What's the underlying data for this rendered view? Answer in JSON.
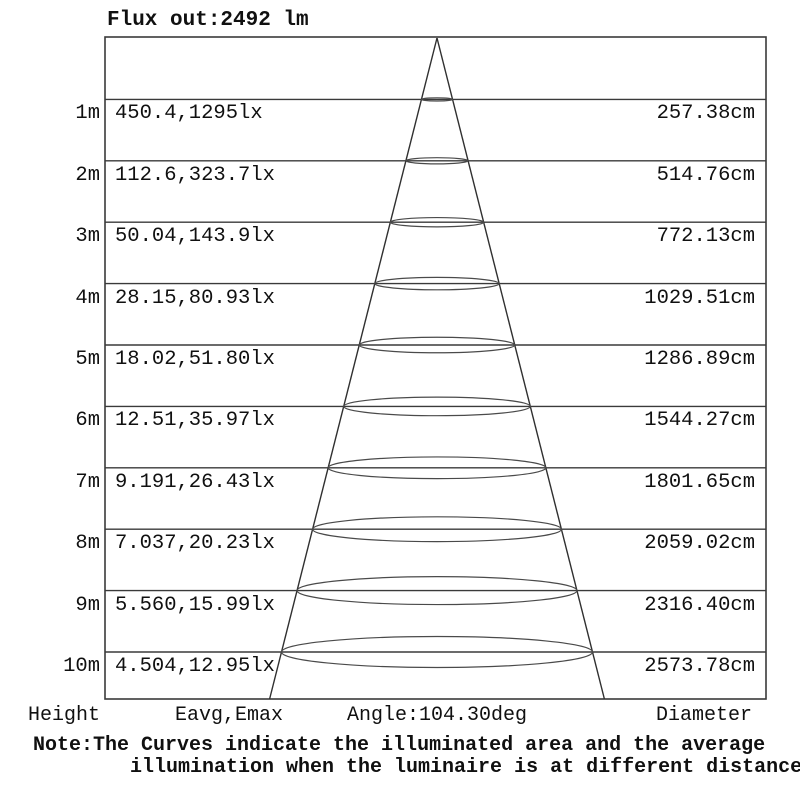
{
  "title": "Flux out:2492 lm",
  "chart_data": {
    "type": "table",
    "title": "Flux out:2492 lm",
    "flux_lm": 2492,
    "beam_angle_deg": 104.3,
    "columns": [
      "Height",
      "Eavg,Emax",
      "Diameter"
    ],
    "rows": [
      {
        "height": "1m",
        "eavg_emax": "450.4,1295lx",
        "diameter": "257.38cm",
        "height_m": 1,
        "eavg_lx": 450.4,
        "emax_lx": 1295,
        "diameter_cm": 257.38
      },
      {
        "height": "2m",
        "eavg_emax": "112.6,323.7lx",
        "diameter": "514.76cm",
        "height_m": 2,
        "eavg_lx": 112.6,
        "emax_lx": 323.7,
        "diameter_cm": 514.76
      },
      {
        "height": "3m",
        "eavg_emax": "50.04,143.9lx",
        "diameter": "772.13cm",
        "height_m": 3,
        "eavg_lx": 50.04,
        "emax_lx": 143.9,
        "diameter_cm": 772.13
      },
      {
        "height": "4m",
        "eavg_emax": "28.15,80.93lx",
        "diameter": "1029.51cm",
        "height_m": 4,
        "eavg_lx": 28.15,
        "emax_lx": 80.93,
        "diameter_cm": 1029.51
      },
      {
        "height": "5m",
        "eavg_emax": "18.02,51.80lx",
        "diameter": "1286.89cm",
        "height_m": 5,
        "eavg_lx": 18.02,
        "emax_lx": 51.8,
        "diameter_cm": 1286.89
      },
      {
        "height": "6m",
        "eavg_emax": "12.51,35.97lx",
        "diameter": "1544.27cm",
        "height_m": 6,
        "eavg_lx": 12.51,
        "emax_lx": 35.97,
        "diameter_cm": 1544.27
      },
      {
        "height": "7m",
        "eavg_emax": "9.191,26.43lx",
        "diameter": "1801.65cm",
        "height_m": 7,
        "eavg_lx": 9.191,
        "emax_lx": 26.43,
        "diameter_cm": 1801.65
      },
      {
        "height": "8m",
        "eavg_emax": "7.037,20.23lx",
        "diameter": "2059.02cm",
        "height_m": 8,
        "eavg_lx": 7.037,
        "emax_lx": 20.23,
        "diameter_cm": 2059.02
      },
      {
        "height": "9m",
        "eavg_emax": "5.560,15.99lx",
        "diameter": "2316.40cm",
        "height_m": 9,
        "eavg_lx": 5.56,
        "emax_lx": 15.99,
        "diameter_cm": 2316.4
      },
      {
        "height": "10m",
        "eavg_emax": "4.504,12.95lx",
        "diameter": "2573.78cm",
        "height_m": 10,
        "eavg_lx": 4.504,
        "emax_lx": 12.95,
        "diameter_cm": 2573.78
      }
    ],
    "grid": true,
    "legend_position": "none"
  },
  "footer": {
    "height_label": "Height",
    "eavg_emax_label": "Eavg,Emax",
    "angle_label": "Angle:104.30deg",
    "diameter_label": "Diameter"
  },
  "note": {
    "line1": "Note:The Curves indicate the illuminated area and the average",
    "line2": "illumination when the luminaire is at different distance."
  },
  "colors": {
    "background": "#ffffff",
    "line": "#3a3a3a",
    "text": "#101010"
  }
}
